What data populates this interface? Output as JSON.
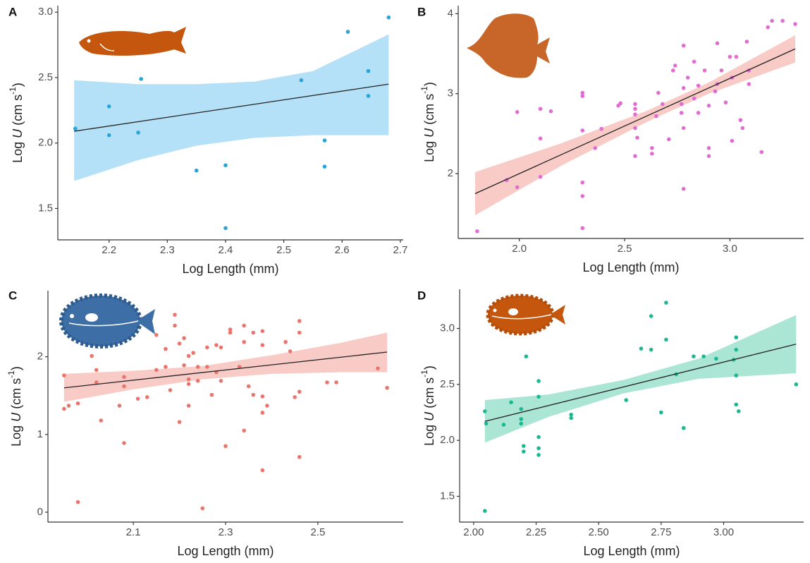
{
  "chart_data": [
    {
      "type": "scatter",
      "panel": "A",
      "xlabel": "Log Length (mm)",
      "ylabel": [
        "Log ",
        "U",
        " (cm s",
        "-1",
        ")"
      ],
      "color": "#2aa3d8",
      "band_color": "#b5e1f8",
      "x": [
        2.142,
        2.2,
        2.2,
        2.255,
        2.25,
        2.35,
        2.4,
        2.4,
        2.53,
        2.57,
        2.57,
        2.61,
        2.645,
        2.645,
        2.68
      ],
      "y": [
        2.11,
        2.28,
        2.06,
        2.49,
        2.08,
        1.79,
        1.83,
        1.35,
        2.48,
        2.02,
        1.82,
        2.85,
        2.55,
        2.36,
        2.96
      ],
      "fit": {
        "x": [
          2.14,
          2.68
        ],
        "y": [
          2.09,
          2.45
        ]
      },
      "band": {
        "x": [
          2.14,
          2.25,
          2.35,
          2.45,
          2.55,
          2.68
        ],
        "upper": [
          2.48,
          2.45,
          2.45,
          2.47,
          2.55,
          2.83
        ],
        "lower": [
          1.71,
          1.87,
          1.98,
          2.04,
          2.06,
          2.06
        ]
      },
      "xlim": [
        2.112,
        2.705
      ],
      "ylim": [
        1.26,
        3.05
      ],
      "xticks": [
        2.2,
        2.3,
        2.4,
        2.5,
        2.6,
        2.7
      ],
      "yticks": [
        {
          "value": 3,
          "label": "3.0"
        },
        2.5,
        {
          "value": 2,
          "label": "2.0"
        },
        1.5
      ]
    },
    {
      "type": "scatter",
      "panel": "B",
      "xlabel": "Log Length (mm)",
      "ylabel": [
        "Log ",
        "U",
        " (cm s",
        "-1",
        ")"
      ],
      "color": "#e26dd2",
      "band_color": "#f9cbc7",
      "x": [
        1.8,
        1.94,
        1.99,
        1.99,
        2.1,
        2.15,
        2.1,
        2.1,
        2.3,
        2.3,
        2.3,
        2.3,
        2.3,
        2.3,
        2.39,
        2.36,
        2.47,
        2.48,
        2.55,
        2.55,
        2.55,
        2.55,
        2.55,
        2.56,
        2.63,
        2.63,
        2.65,
        2.66,
        2.68,
        2.71,
        2.73,
        2.74,
        2.77,
        2.77,
        2.78,
        2.78,
        2.78,
        2.78,
        2.8,
        2.83,
        2.83,
        2.85,
        2.85,
        2.88,
        2.9,
        2.9,
        2.9,
        2.93,
        2.94,
        2.94,
        2.96,
        2.98,
        3.0,
        3.01,
        3.01,
        3.03,
        3.05,
        3.06,
        3.08,
        3.09,
        3.09,
        3.15,
        3.18,
        3.2,
        3.25,
        3.31
      ],
      "y": [
        1.28,
        1.92,
        1.83,
        2.77,
        2.81,
        2.78,
        2.44,
        1.96,
        3.01,
        2.97,
        2.54,
        1.89,
        1.72,
        1.32,
        2.56,
        2.32,
        2.85,
        2.88,
        2.87,
        2.81,
        2.74,
        2.57,
        2.22,
        2.45,
        2.32,
        2.25,
        2.72,
        3.01,
        2.87,
        2.43,
        3.29,
        3.35,
        2.76,
        2.87,
        3.07,
        1.81,
        2.57,
        3.6,
        3.2,
        3.4,
        2.94,
        3.1,
        2.76,
        3.29,
        2.85,
        2.32,
        2.22,
        3.03,
        3.63,
        3.12,
        3.29,
        2.89,
        3.46,
        3.2,
        2.41,
        3.46,
        2.67,
        2.57,
        3.65,
        3.12,
        3.29,
        2.27,
        3.83,
        3.91,
        3.91,
        3.87
      ],
      "fit": {
        "x": [
          1.79,
          3.31
        ],
        "y": [
          1.75,
          3.56
        ]
      },
      "band": {
        "x": [
          1.79,
          2.2,
          2.6,
          2.9,
          3.31
        ],
        "upper": [
          2.02,
          2.38,
          2.78,
          3.14,
          3.73
        ],
        "lower": [
          1.48,
          2.1,
          2.64,
          3.0,
          3.39
        ]
      },
      "xlim": [
        1.71,
        3.35
      ],
      "ylim": [
        1.19,
        4.1
      ],
      "xticks": [
        {
          "value": 2,
          "label": "2.0"
        },
        2.5,
        {
          "value": 3,
          "label": "3.0"
        }
      ],
      "yticks": [
        2,
        3,
        4
      ]
    },
    {
      "type": "scatter",
      "panel": "C",
      "xlabel": "Log Length (mm)",
      "ylabel": [
        "Log ",
        "U",
        " (cm s",
        "-1",
        ")"
      ],
      "color": "#e8766d",
      "band_color": "#f9cbc7",
      "x": [
        1.95,
        1.95,
        1.96,
        1.98,
        1.98,
        2.01,
        2.02,
        2.02,
        2.03,
        2.08,
        2.08,
        2.08,
        2.07,
        2.11,
        2.13,
        2.15,
        2.15,
        2.17,
        2.17,
        2.18,
        2.19,
        2.19,
        2.2,
        2.2,
        2.21,
        2.21,
        2.22,
        2.22,
        2.22,
        2.22,
        2.23,
        2.24,
        2.24,
        2.25,
        2.26,
        2.26,
        2.27,
        2.28,
        2.28,
        2.29,
        2.29,
        2.3,
        2.31,
        2.31,
        2.33,
        2.34,
        2.34,
        2.34,
        2.35,
        2.36,
        2.36,
        2.38,
        2.38,
        2.38,
        2.38,
        2.38,
        2.39,
        2.43,
        2.44,
        2.45,
        2.46,
        2.46,
        2.46,
        2.46,
        2.52,
        2.54,
        2.63,
        2.65
      ],
      "y": [
        1.33,
        1.76,
        1.37,
        1.4,
        0.13,
        2.01,
        1.83,
        1.67,
        1.18,
        1.74,
        1.62,
        0.89,
        1.37,
        1.46,
        1.48,
        2.28,
        1.83,
        2.1,
        1.87,
        1.57,
        2.54,
        2.4,
        1.16,
        2.17,
        1.89,
        2.24,
        1.71,
        2.01,
        1.65,
        1.37,
        2.05,
        1.87,
        1.69,
        0.05,
        2.12,
        1.87,
        1.51,
        2.15,
        1.8,
        2.12,
        1.69,
        0.85,
        2.35,
        2.31,
        1.87,
        2.4,
        2.19,
        1.05,
        1.62,
        2.31,
        1.51,
        2.33,
        2.15,
        0.54,
        1.28,
        1.49,
        1.37,
        2.19,
        2.07,
        1.48,
        2.31,
        1.55,
        2.46,
        0.71,
        1.67,
        1.67,
        1.85,
        1.6
      ],
      "fit": {
        "x": [
          1.95,
          2.65
        ],
        "y": [
          1.6,
          2.06
        ]
      },
      "band": {
        "x": [
          1.95,
          2.1,
          2.25,
          2.4,
          2.55,
          2.65
        ],
        "upper": [
          1.78,
          1.82,
          1.88,
          2.02,
          2.18,
          2.31
        ],
        "lower": [
          1.42,
          1.58,
          1.71,
          1.78,
          1.8,
          1.8
        ]
      },
      "xlim": [
        1.915,
        2.685
      ],
      "ylim": [
        -0.127,
        2.85
      ],
      "xticks": [
        2.1,
        2.3,
        2.5
      ],
      "yticks": [
        0,
        1,
        2
      ]
    },
    {
      "type": "scatter",
      "panel": "D",
      "xlabel": "Log Length (mm)",
      "ylabel": [
        "Log ",
        "U",
        " (cm s",
        "-1",
        ")"
      ],
      "color": "#1db892",
      "band_color": "#abe6d5",
      "x": [
        2.045,
        2.045,
        2.05,
        2.12,
        2.15,
        2.19,
        2.19,
        2.19,
        2.2,
        2.2,
        2.21,
        2.26,
        2.26,
        2.26,
        2.26,
        2.26,
        2.39,
        2.39,
        2.61,
        2.67,
        2.71,
        2.71,
        2.77,
        2.77,
        2.75,
        2.81,
        2.84,
        2.88,
        2.92,
        2.97,
        3.04,
        3.05,
        3.05,
        3.05,
        3.05,
        3.06,
        3.29
      ],
      "y": [
        1.37,
        2.26,
        2.15,
        2.14,
        2.34,
        2.28,
        2.19,
        2.15,
        1.95,
        1.9,
        2.75,
        2.53,
        2.39,
        2.03,
        1.93,
        1.87,
        2.23,
        2.2,
        2.36,
        2.82,
        3.11,
        2.81,
        3.23,
        2.9,
        2.25,
        2.59,
        2.11,
        2.75,
        2.75,
        2.73,
        2.72,
        2.81,
        2.58,
        2.92,
        2.32,
        2.26,
        2.5
      ],
      "fit": {
        "x": [
          2.045,
          3.29
        ],
        "y": [
          2.17,
          2.86
        ]
      },
      "band": {
        "x": [
          2.045,
          2.3,
          2.6,
          2.9,
          3.29
        ],
        "upper": [
          2.36,
          2.41,
          2.54,
          2.73,
          3.12
        ],
        "lower": [
          1.98,
          2.21,
          2.42,
          2.55,
          2.6
        ]
      },
      "xlim": [
        1.944,
        3.32
      ],
      "ylim": [
        1.27,
        3.35
      ],
      "xticks": [
        {
          "value": 2,
          "label": "2.00"
        },
        2.25,
        {
          "value": 2.5,
          "label": "2.50"
        },
        2.75,
        {
          "value": 3,
          "label": "3.00"
        }
      ],
      "yticks": [
        1.5,
        {
          "value": 2,
          "label": "2.0"
        },
        2.5,
        {
          "value": 3,
          "label": "3.0"
        }
      ]
    }
  ]
}
